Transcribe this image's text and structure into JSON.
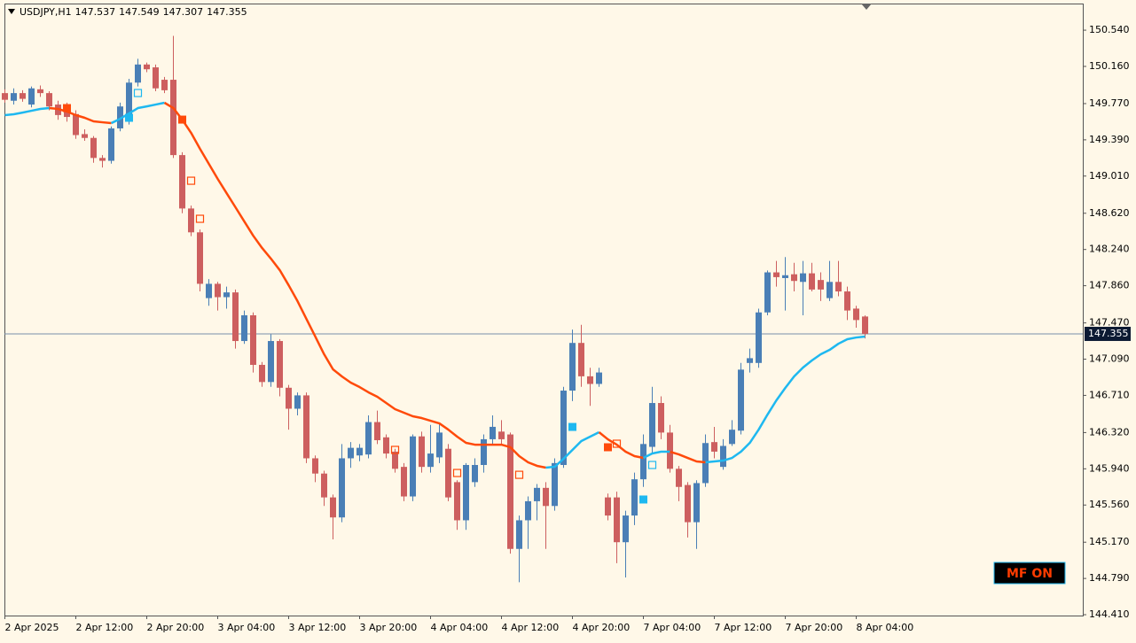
{
  "chart_data": {
    "type": "candlestick",
    "symbol": "USDJPY,H1",
    "bull_color": "#4a7fb6",
    "bear_color": "#cd5f5f",
    "categories": [
      "2 Apr 2025",
      null,
      null,
      null,
      null,
      null,
      null,
      null,
      "2 Apr 12:00",
      null,
      null,
      null,
      null,
      null,
      null,
      null,
      "2 Apr 20:00",
      null,
      null,
      null,
      null,
      null,
      null,
      null,
      "3 Apr 04:00",
      null,
      null,
      null,
      null,
      null,
      null,
      null,
      "3 Apr 12:00",
      null,
      null,
      null,
      null,
      null,
      null,
      null,
      "3 Apr 20:00",
      null,
      null,
      null,
      null,
      null,
      null,
      null,
      "4 Apr 04:00",
      null,
      null,
      null,
      null,
      null,
      null,
      null,
      "4 Apr 12:00",
      null,
      null,
      null,
      null,
      null,
      null,
      null,
      "4 Apr 20:00",
      null,
      null,
      null,
      null,
      null,
      null,
      null,
      "7 Apr 04:00",
      null,
      null,
      null,
      null,
      null,
      null,
      null,
      "7 Apr 12:00",
      null,
      null,
      null,
      null,
      null,
      null,
      null,
      "7 Apr 20:00",
      null,
      null,
      null,
      null,
      null,
      null,
      null,
      "8 Apr 04:00",
      null
    ],
    "open": [
      149.88,
      149.8,
      149.88,
      149.76,
      149.92,
      149.88,
      149.76,
      149.74,
      149.66,
      149.45,
      149.41,
      149.2,
      149.17,
      149.51,
      149.6,
      149.99,
      150.18,
      150.15,
      150.02,
      150.02,
      149.23,
      148.67,
      148.42,
      147.73,
      147.88,
      147.74,
      147.79,
      147.28,
      147.55,
      147.03,
      146.85,
      147.28,
      146.79,
      146.57,
      146.71,
      146.05,
      145.89,
      145.64,
      145.43,
      146.05,
      146.08,
      146.09,
      146.43,
      146.27,
      146.12,
      145.96,
      145.65,
      146.28,
      145.96,
      146.06,
      146.15,
      145.8,
      145.4,
      145.8,
      145.98,
      146.25,
      146.33,
      146.3,
      145.1,
      145.4,
      145.6,
      145.74,
      145.55,
      145.98,
      146.76,
      147.26,
      146.91,
      146.83,
      145.64,
      145.64,
      145.17,
      145.45,
      145.83,
      146.17,
      146.63,
      146.32,
      145.94,
      145.77,
      145.38,
      145.79,
      146.22,
      145.96,
      146.2,
      146.34,
      147.05,
      147.05,
      147.58,
      148.0,
      147.94,
      147.98,
      147.9,
      147.99,
      147.92,
      147.73,
      147.9,
      147.8,
      147.62,
      147.537
    ],
    "high": [
      149.92,
      149.93,
      149.91,
      149.95,
      149.96,
      149.9,
      149.8,
      149.78,
      149.7,
      149.5,
      149.43,
      149.23,
      149.53,
      149.78,
      150.03,
      150.24,
      150.2,
      150.18,
      150.05,
      150.48,
      149.26,
      148.7,
      148.45,
      147.93,
      147.9,
      147.85,
      147.82,
      147.6,
      147.58,
      147.06,
      147.35,
      147.3,
      146.82,
      146.74,
      146.74,
      146.08,
      145.92,
      145.67,
      146.2,
      146.22,
      146.2,
      146.5,
      146.55,
      146.3,
      146.15,
      146.0,
      146.3,
      146.33,
      146.4,
      146.42,
      146.2,
      145.82,
      146.0,
      146.05,
      146.3,
      146.5,
      146.45,
      146.32,
      145.45,
      145.65,
      145.78,
      145.8,
      146.05,
      146.8,
      147.4,
      147.45,
      147.0,
      147.0,
      145.68,
      145.7,
      145.5,
      145.9,
      146.3,
      146.8,
      146.7,
      146.4,
      145.97,
      145.8,
      145.82,
      146.3,
      146.38,
      146.25,
      146.45,
      147.05,
      147.2,
      147.62,
      148.02,
      148.12,
      148.16,
      148.1,
      148.12,
      148.1,
      148.0,
      148.12,
      148.12,
      147.85,
      147.65,
      147.549
    ],
    "low": [
      149.78,
      149.76,
      149.79,
      149.73,
      149.84,
      149.7,
      149.6,
      149.58,
      149.4,
      149.38,
      149.15,
      149.1,
      149.14,
      149.48,
      149.55,
      149.95,
      150.1,
      149.9,
      149.88,
      149.2,
      148.62,
      148.38,
      147.8,
      147.65,
      147.6,
      147.62,
      147.2,
      147.25,
      146.95,
      146.8,
      146.8,
      146.7,
      146.35,
      146.5,
      146.0,
      145.8,
      145.55,
      145.2,
      145.38,
      145.95,
      146.02,
      146.05,
      146.2,
      146.05,
      145.9,
      145.6,
      145.6,
      145.9,
      145.9,
      146.0,
      145.6,
      145.3,
      145.3,
      145.75,
      145.9,
      146.2,
      146.2,
      145.05,
      144.75,
      145.1,
      145.4,
      145.1,
      145.5,
      145.95,
      146.65,
      146.8,
      146.6,
      146.8,
      145.4,
      144.95,
      144.8,
      145.35,
      145.75,
      146.1,
      146.25,
      145.9,
      145.6,
      145.22,
      145.1,
      145.75,
      146.05,
      145.93,
      146.18,
      146.3,
      146.95,
      147.0,
      147.55,
      147.85,
      147.6,
      147.8,
      147.55,
      147.8,
      147.7,
      147.7,
      147.75,
      147.5,
      147.42,
      147.307
    ],
    "close": [
      149.81,
      149.88,
      149.82,
      149.93,
      149.88,
      149.74,
      149.65,
      149.63,
      149.44,
      149.41,
      149.2,
      149.17,
      149.51,
      149.74,
      149.99,
      150.18,
      150.13,
      149.93,
      149.91,
      149.23,
      148.67,
      148.42,
      147.88,
      147.88,
      147.74,
      147.79,
      147.28,
      147.55,
      147.03,
      146.85,
      147.28,
      146.79,
      146.57,
      146.71,
      146.05,
      145.89,
      145.64,
      145.43,
      146.05,
      146.16,
      146.16,
      146.43,
      146.24,
      146.1,
      145.94,
      145.65,
      146.28,
      145.96,
      146.1,
      146.32,
      145.64,
      145.4,
      145.98,
      145.98,
      146.25,
      146.38,
      146.25,
      145.1,
      145.4,
      145.6,
      145.74,
      145.55,
      146.0,
      146.76,
      147.26,
      146.91,
      146.83,
      146.95,
      145.45,
      145.17,
      145.45,
      145.83,
      146.2,
      146.63,
      146.32,
      145.94,
      145.75,
      145.38,
      145.79,
      146.21,
      146.12,
      146.18,
      146.35,
      146.98,
      147.1,
      147.58,
      148.0,
      147.95,
      147.97,
      147.91,
      147.99,
      147.82,
      147.82,
      147.9,
      147.8,
      147.6,
      147.5,
      147.355
    ],
    "ma": {
      "up_color": "#1eb8f0",
      "down_color": "#ff4a0a",
      "values": [
        149.649,
        149.658,
        149.676,
        149.695,
        149.714,
        149.723,
        149.714,
        149.686,
        149.649,
        149.621,
        149.584,
        149.574,
        149.565,
        149.611,
        149.667,
        149.723,
        149.741,
        149.76,
        149.779,
        149.723,
        149.602,
        149.463,
        149.296,
        149.138,
        148.98,
        148.831,
        148.683,
        148.534,
        148.385,
        148.256,
        148.144,
        148.023,
        147.865,
        147.698,
        147.512,
        147.327,
        147.141,
        146.983,
        146.909,
        146.844,
        146.797,
        146.742,
        146.695,
        146.63,
        146.565,
        146.528,
        146.491,
        146.472,
        146.444,
        146.416,
        146.351,
        146.277,
        146.212,
        146.193,
        146.193,
        146.193,
        146.193,
        146.166,
        146.073,
        146.008,
        145.971,
        145.952,
        145.961,
        146.045,
        146.138,
        146.231,
        146.277,
        146.324,
        146.249,
        146.193,
        146.119,
        146.073,
        146.054,
        146.101,
        146.119,
        146.119,
        146.091,
        146.054,
        146.017,
        146.008,
        146.017,
        146.026,
        146.054,
        146.119,
        146.212,
        146.351,
        146.509,
        146.658,
        146.788,
        146.909,
        147.002,
        147.076,
        147.141,
        147.187,
        147.252,
        147.299,
        147.317,
        147.327
      ]
    },
    "signals": [
      {
        "at": 7,
        "value": 149.723,
        "color": "#ff4a0a",
        "filled": true
      },
      {
        "at": 14,
        "value": 149.621,
        "color": "#1eb8f0",
        "filled": true
      },
      {
        "at": 20,
        "value": 149.602,
        "color": "#ff4a0a",
        "filled": true
      },
      {
        "at": 64,
        "value": 146.379,
        "color": "#1eb8f0",
        "filled": true
      },
      {
        "at": 68,
        "value": 146.166,
        "color": "#ff4a0a",
        "filled": true
      },
      {
        "at": 72,
        "value": 145.618,
        "color": "#1eb8f0",
        "filled": true
      },
      {
        "at": 15,
        "value": 149.881,
        "color": "#1eb8f0",
        "filled": false
      },
      {
        "at": 21,
        "value": 148.961,
        "color": "#ff4a0a",
        "filled": false
      },
      {
        "at": 22,
        "value": 148.562,
        "color": "#ff4a0a",
        "filled": false
      },
      {
        "at": 44,
        "value": 146.138,
        "color": "#ff4a0a",
        "filled": false
      },
      {
        "at": 51,
        "value": 145.896,
        "color": "#ff4a0a",
        "filled": false
      },
      {
        "at": 58,
        "value": 145.877,
        "color": "#ff4a0a",
        "filled": false
      },
      {
        "at": 69,
        "value": 146.203,
        "color": "#ff4a0a",
        "filled": false
      },
      {
        "at": 73,
        "value": 145.98,
        "color": "#1eb8f0",
        "filled": false
      }
    ],
    "ylim": [
      144.401,
      150.81
    ],
    "yticks": [
      {
        "value": 150.54,
        "label": "150.540"
      },
      {
        "value": 150.16,
        "label": "150.160"
      },
      {
        "value": 149.77,
        "label": "149.770"
      },
      {
        "value": 149.39,
        "label": "149.390"
      },
      {
        "value": 149.01,
        "label": "149.010"
      },
      {
        "value": 148.62,
        "label": "148.620"
      },
      {
        "value": 148.24,
        "label": "148.240"
      },
      {
        "value": 147.86,
        "label": "147.860"
      },
      {
        "value": 147.47,
        "label": "147.470"
      },
      {
        "value": 147.09,
        "label": "147.090"
      },
      {
        "value": 146.71,
        "label": "146.710"
      },
      {
        "value": 146.32,
        "label": "146.320"
      },
      {
        "value": 145.94,
        "label": "145.940"
      },
      {
        "value": 145.56,
        "label": "145.560"
      },
      {
        "value": 145.17,
        "label": "145.170"
      },
      {
        "value": 144.79,
        "label": "144.790"
      },
      {
        "value": 144.41,
        "label": "144.410"
      }
    ],
    "grid": false
  },
  "button": "MF ON"
}
